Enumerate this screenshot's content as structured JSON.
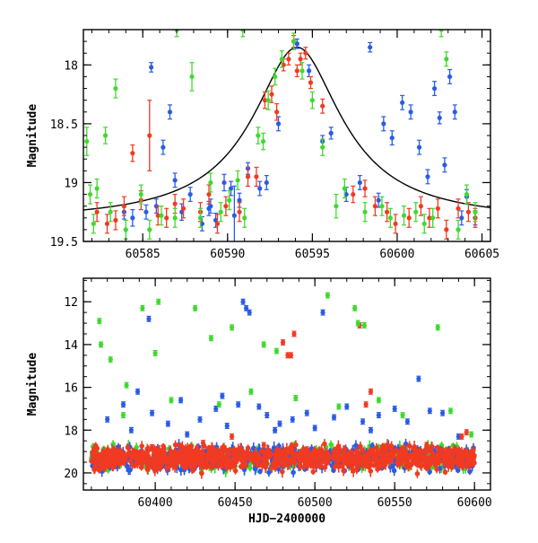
{
  "chart_data": [
    {
      "type": "scatter",
      "title": "",
      "xlabel": "",
      "ylabel": "Magnitude",
      "xlim": [
        60581.5,
        60605.5
      ],
      "ylim": [
        19.5,
        17.7
      ],
      "y_inverted": true,
      "xticks": [
        60585,
        60590,
        60595,
        60600,
        60605
      ],
      "yticks": [
        18,
        18.5,
        19,
        19.5
      ],
      "grid": false,
      "model_curve": {
        "form": "lorentzian-in-magnitude",
        "baseline_mag": 19.33,
        "peak_mag": 17.85,
        "peak_x": 60594.1,
        "half_width": 2.3,
        "color": "#000000"
      },
      "series": [
        {
          "color": "#2a5be8",
          "points": [
            [
              60583.9,
              19.25,
              0.06
            ],
            [
              60584.4,
              19.3,
              0.07
            ],
            [
              60585.5,
              18.02,
              0.04
            ],
            [
              60585.8,
              19.2,
              0.06
            ],
            [
              60586.2,
              18.7,
              0.06
            ],
            [
              60586.6,
              18.4,
              0.06
            ],
            [
              60586.9,
              18.98,
              0.06
            ],
            [
              60587.3,
              19.25,
              0.07
            ],
            [
              60587.8,
              19.1,
              0.06
            ],
            [
              60588.5,
              19.35,
              0.06
            ],
            [
              60589.0,
              19.2,
              0.06
            ],
            [
              60589.3,
              19.32,
              0.06
            ],
            [
              60589.8,
              19.0,
              0.07
            ],
            [
              60590.2,
              19.05,
              0.06
            ],
            [
              60590.4,
              19.28,
              0.25
            ],
            [
              60590.7,
              19.15,
              0.06
            ],
            [
              60591.2,
              18.88,
              0.05
            ],
            [
              60592.3,
              19.0,
              0.06
            ],
            [
              60593.0,
              18.5,
              0.06
            ],
            [
              60594.1,
              17.82,
              0.04
            ],
            [
              60594.8,
              18.05,
              0.05
            ],
            [
              60595.6,
              18.65,
              0.05
            ],
            [
              60596.1,
              18.58,
              0.05
            ],
            [
              60597.0,
              19.1,
              0.06
            ],
            [
              60597.8,
              19.0,
              0.06
            ],
            [
              60598.4,
              17.85,
              0.04
            ],
            [
              60598.9,
              19.15,
              0.06
            ],
            [
              60599.2,
              18.5,
              0.06
            ],
            [
              60599.7,
              18.62,
              0.06
            ],
            [
              60600.3,
              18.32,
              0.06
            ],
            [
              60600.8,
              18.4,
              0.06
            ],
            [
              60601.3,
              18.7,
              0.06
            ],
            [
              60601.8,
              18.95,
              0.06
            ],
            [
              60602.2,
              18.2,
              0.06
            ],
            [
              60602.5,
              18.45,
              0.05
            ],
            [
              60602.8,
              18.85,
              0.06
            ],
            [
              60603.1,
              18.1,
              0.06
            ],
            [
              60603.4,
              18.4,
              0.06
            ],
            [
              60604.1,
              19.12,
              0.06
            ],
            [
              60604.6,
              19.3,
              0.06
            ],
            [
              60585.2,
              19.25,
              0.06
            ],
            [
              60588.9,
              19.22,
              0.06
            ],
            [
              60591.9,
              19.05,
              0.06
            ],
            [
              60603.8,
              19.3,
              0.06
            ]
          ]
        },
        {
          "color": "#f03a22",
          "points": [
            [
              60582.3,
              19.25,
              0.08
            ],
            [
              60582.9,
              19.35,
              0.08
            ],
            [
              60583.4,
              19.32,
              0.08
            ],
            [
              60583.9,
              19.2,
              0.08
            ],
            [
              60584.4,
              18.75,
              0.07
            ],
            [
              60584.9,
              19.15,
              0.08
            ],
            [
              60585.4,
              18.6,
              0.3
            ],
            [
              60585.9,
              19.28,
              0.08
            ],
            [
              60586.4,
              19.3,
              0.08
            ],
            [
              60586.9,
              19.18,
              0.08
            ],
            [
              60587.4,
              19.22,
              0.08
            ],
            [
              60588.4,
              19.25,
              0.08
            ],
            [
              60588.9,
              19.1,
              0.08
            ],
            [
              60589.4,
              19.35,
              0.08
            ],
            [
              60589.9,
              19.2,
              0.08
            ],
            [
              60590.7,
              19.25,
              0.08
            ],
            [
              60591.2,
              18.95,
              0.08
            ],
            [
              60591.7,
              18.95,
              0.08
            ],
            [
              60592.2,
              18.3,
              0.07
            ],
            [
              60592.6,
              18.25,
              0.07
            ],
            [
              60592.9,
              18.4,
              0.07
            ],
            [
              60593.3,
              18.0,
              0.05
            ],
            [
              60593.6,
              17.95,
              0.05
            ],
            [
              60593.9,
              17.8,
              0.05
            ],
            [
              60594.1,
              18.05,
              0.05
            ],
            [
              60594.3,
              17.95,
              0.05
            ],
            [
              60594.6,
              17.9,
              0.05
            ],
            [
              60594.9,
              18.15,
              0.05
            ],
            [
              60595.6,
              18.35,
              0.06
            ],
            [
              60597.4,
              19.1,
              0.07
            ],
            [
              60598.1,
              19.05,
              0.07
            ],
            [
              60598.7,
              19.2,
              0.08
            ],
            [
              60599.4,
              19.25,
              0.08
            ],
            [
              60599.9,
              19.35,
              0.08
            ],
            [
              60600.7,
              19.3,
              0.08
            ],
            [
              60601.4,
              19.2,
              0.08
            ],
            [
              60601.9,
              19.3,
              0.08
            ],
            [
              60602.4,
              19.22,
              0.08
            ],
            [
              60602.9,
              19.4,
              0.08
            ],
            [
              60603.6,
              19.22,
              0.08
            ],
            [
              60604.2,
              19.25,
              0.08
            ],
            [
              60604.6,
              19.3,
              0.08
            ]
          ]
        },
        {
          "color": "#3fd92e",
          "points": [
            [
              60581.7,
              18.65,
              0.12
            ],
            [
              60581.9,
              19.1,
              0.08
            ],
            [
              60582.1,
              19.35,
              0.08
            ],
            [
              60582.3,
              19.05,
              0.08
            ],
            [
              60582.8,
              18.6,
              0.07
            ],
            [
              60583.1,
              19.25,
              0.08
            ],
            [
              60583.4,
              18.2,
              0.08
            ],
            [
              60584.0,
              19.4,
              0.08
            ],
            [
              60584.9,
              19.1,
              0.08
            ],
            [
              60585.4,
              19.4,
              0.08
            ],
            [
              60586.1,
              19.28,
              0.08
            ],
            [
              60586.9,
              19.3,
              0.08
            ],
            [
              60587.9,
              18.1,
              0.12
            ],
            [
              60588.4,
              19.3,
              0.08
            ],
            [
              60589.0,
              19.0,
              0.08
            ],
            [
              60589.6,
              19.25,
              0.08
            ],
            [
              60590.1,
              19.15,
              0.08
            ],
            [
              60590.6,
              18.98,
              0.08
            ],
            [
              60591.0,
              19.3,
              0.08
            ],
            [
              60591.8,
              18.6,
              0.07
            ],
            [
              60592.1,
              18.65,
              0.07
            ],
            [
              60592.8,
              18.1,
              0.07
            ],
            [
              60593.2,
              17.95,
              0.07
            ],
            [
              60593.9,
              17.8,
              0.07
            ],
            [
              60594.4,
              18.05,
              0.07
            ],
            [
              60595.0,
              18.3,
              0.07
            ],
            [
              60595.6,
              18.7,
              0.07
            ],
            [
              60596.4,
              19.2,
              0.1
            ],
            [
              60596.9,
              19.05,
              0.08
            ],
            [
              60598.1,
              19.25,
              0.08
            ],
            [
              60599.1,
              19.2,
              0.08
            ],
            [
              60599.6,
              19.3,
              0.08
            ],
            [
              60600.4,
              19.28,
              0.08
            ],
            [
              60601.1,
              19.25,
              0.08
            ],
            [
              60601.6,
              19.35,
              0.08
            ],
            [
              60602.1,
              19.3,
              0.08
            ],
            [
              60602.6,
              17.7,
              0.06
            ],
            [
              60602.9,
              17.95,
              0.06
            ],
            [
              60603.6,
              19.4,
              0.08
            ],
            [
              60604.1,
              19.1,
              0.08
            ],
            [
              60604.6,
              19.25,
              0.08
            ],
            [
              60590.9,
              17.7,
              0.06
            ],
            [
              60592.4,
              18.3,
              0.08
            ],
            [
              60587.0,
              17.7,
              0.06
            ]
          ]
        }
      ]
    },
    {
      "type": "scatter",
      "title": "",
      "xlabel": "HJD−2400000",
      "ylabel": "Magnitude",
      "xlim": [
        60355,
        60610
      ],
      "ylim": [
        20.8,
        10.9
      ],
      "y_inverted": true,
      "xticks": [
        60400,
        60450,
        60500,
        60550,
        60600
      ],
      "yticks": [
        12,
        14,
        16,
        18,
        20
      ],
      "grid": false,
      "baseline_band": {
        "x_range": [
          60360,
          60600
        ],
        "mag": 19.3,
        "scatter": 0.4
      },
      "series": [
        {
          "color": "#2a5be8",
          "points": [
            [
              60370,
              17.5
            ],
            [
              60380,
              16.8
            ],
            [
              60389,
              16.2
            ],
            [
              60396,
              12.8
            ],
            [
              60398,
              17.2
            ],
            [
              60408,
              17.7
            ],
            [
              60416,
              16.6
            ],
            [
              60428,
              17.5
            ],
            [
              60438,
              17.0
            ],
            [
              60442,
              16.4
            ],
            [
              60452,
              16.8
            ],
            [
              60455,
              12.0
            ],
            [
              60457,
              12.3
            ],
            [
              60459,
              12.5
            ],
            [
              60465,
              16.9
            ],
            [
              60470,
              17.3
            ],
            [
              60478,
              17.7
            ],
            [
              60486,
              17.5
            ],
            [
              60495,
              17.2
            ],
            [
              60505,
              12.5
            ],
            [
              60512,
              17.4
            ],
            [
              60520,
              16.9
            ],
            [
              60530,
              17.6
            ],
            [
              60540,
              17.3
            ],
            [
              60550,
              17.0
            ],
            [
              60558,
              17.6
            ],
            [
              60565,
              15.6
            ],
            [
              60572,
              17.1
            ],
            [
              60580,
              17.2
            ],
            [
              60590,
              18.3
            ],
            [
              60385,
              18.0
            ],
            [
              60420,
              18.2
            ],
            [
              60445,
              17.8
            ],
            [
              60475,
              18.0
            ],
            [
              60500,
              17.9
            ],
            [
              60535,
              18.0
            ]
          ]
        },
        {
          "color": "#f03a22",
          "points": [
            [
              60480,
              13.9
            ],
            [
              60483,
              14.5
            ],
            [
              60485,
              14.5
            ],
            [
              60487,
              13.5
            ],
            [
              60528,
              13.1
            ],
            [
              60532,
              16.8
            ],
            [
              60535,
              16.2
            ],
            [
              60592,
              18.3
            ],
            [
              60595,
              18.1
            ],
            [
              60398,
              18.8
            ],
            [
              60430,
              18.6
            ],
            [
              60448,
              18.3
            ],
            [
              60468,
              18.7
            ],
            [
              60495,
              18.9
            ],
            [
              60515,
              18.8
            ],
            [
              60545,
              18.9
            ],
            [
              60570,
              18.7
            ]
          ]
        },
        {
          "color": "#3fd92e",
          "points": [
            [
              60365,
              12.9
            ],
            [
              60366,
              14.0
            ],
            [
              60372,
              14.7
            ],
            [
              60382,
              15.9
            ],
            [
              60392,
              12.3
            ],
            [
              60400,
              14.4
            ],
            [
              60402,
              12.0
            ],
            [
              60425,
              12.3
            ],
            [
              60435,
              13.7
            ],
            [
              60448,
              13.2
            ],
            [
              60468,
              14.0
            ],
            [
              60476,
              14.3
            ],
            [
              60508,
              11.7
            ],
            [
              60525,
              12.3
            ],
            [
              60527,
              13.0
            ],
            [
              60531,
              13.1
            ],
            [
              60577,
              13.2
            ],
            [
              60380,
              17.3
            ],
            [
              60410,
              16.6
            ],
            [
              60440,
              16.8
            ],
            [
              60460,
              16.2
            ],
            [
              60488,
              16.5
            ],
            [
              60515,
              16.9
            ],
            [
              60540,
              16.6
            ],
            [
              60555,
              17.3
            ],
            [
              60585,
              17.1
            ],
            [
              60598,
              18.2
            ]
          ]
        }
      ]
    }
  ]
}
